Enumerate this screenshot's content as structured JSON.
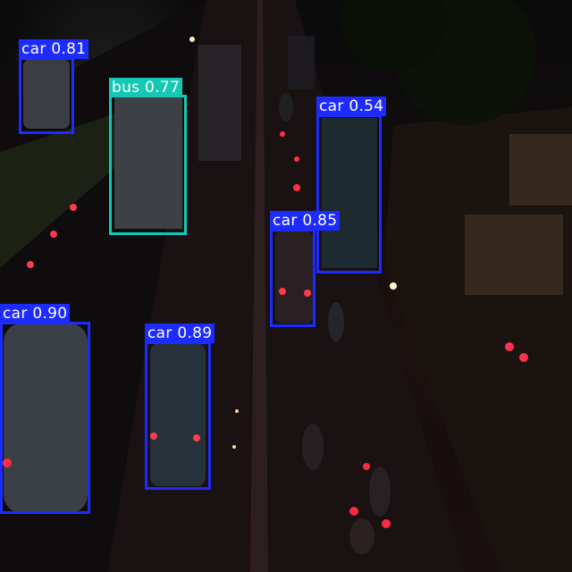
{
  "colors": {
    "car": "#1e2bff",
    "bus": "#14c8b4",
    "label_text": "#ffffff"
  },
  "detections": [
    {
      "label": "car 0.81",
      "class": "car",
      "confidence": 0.81
    },
    {
      "label": "bus 0.77",
      "class": "bus",
      "confidence": 0.77
    },
    {
      "label": "car 0.54",
      "class": "car",
      "confidence": 0.54
    },
    {
      "label": "car 0.85",
      "class": "car",
      "confidence": 0.85
    },
    {
      "label": "car 0.90",
      "class": "car",
      "confidence": 0.9
    },
    {
      "label": "car 0.89",
      "class": "car",
      "confidence": 0.89
    }
  ]
}
